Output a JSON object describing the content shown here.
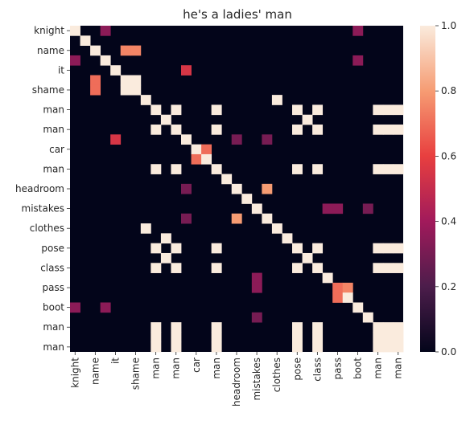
{
  "chart_data": {
    "type": "heatmap",
    "title": "he's a ladies' man",
    "xlabel": "",
    "ylabel": "",
    "labels": [
      "knight",
      "",
      "name",
      "",
      "it",
      "",
      "shame",
      "",
      "man",
      "",
      "man",
      "",
      "car",
      "",
      "man",
      "",
      "headroom",
      "",
      "mistakes",
      "",
      "clothes",
      "",
      "pose",
      "",
      "class",
      "",
      "pass",
      "",
      "boot",
      "",
      "man",
      "",
      "man"
    ],
    "n": 33,
    "colorbar": {
      "min": 0.0,
      "max": 1.0,
      "ticks": [
        "0.0",
        "0.2",
        "0.4",
        "0.6",
        "0.8",
        "1.0"
      ]
    },
    "cells": [
      [
        0,
        0,
        1.0
      ],
      [
        0,
        3,
        0.35
      ],
      [
        0,
        28,
        0.35
      ],
      [
        1,
        1,
        1.0
      ],
      [
        2,
        2,
        1.0
      ],
      [
        2,
        5,
        0.75
      ],
      [
        2,
        6,
        0.75
      ],
      [
        3,
        0,
        0.35
      ],
      [
        3,
        3,
        1.0
      ],
      [
        3,
        28,
        0.35
      ],
      [
        4,
        4,
        1.0
      ],
      [
        4,
        11,
        0.55
      ],
      [
        5,
        2,
        0.7
      ],
      [
        5,
        5,
        1.0
      ],
      [
        5,
        6,
        1.0
      ],
      [
        6,
        2,
        0.7
      ],
      [
        6,
        5,
        1.0
      ],
      [
        6,
        6,
        1.0
      ],
      [
        7,
        7,
        1.0
      ],
      [
        7,
        20,
        1.0
      ],
      [
        8,
        8,
        1.0
      ],
      [
        8,
        10,
        1.0
      ],
      [
        8,
        14,
        1.0
      ],
      [
        8,
        22,
        1.0
      ],
      [
        8,
        24,
        1.0
      ],
      [
        8,
        30,
        1.0
      ],
      [
        8,
        31,
        1.0
      ],
      [
        8,
        32,
        1.0
      ],
      [
        9,
        9,
        1.0
      ],
      [
        9,
        23,
        1.0
      ],
      [
        10,
        8,
        1.0
      ],
      [
        10,
        10,
        1.0
      ],
      [
        10,
        14,
        1.0
      ],
      [
        10,
        22,
        1.0
      ],
      [
        10,
        24,
        1.0
      ],
      [
        10,
        30,
        1.0
      ],
      [
        10,
        31,
        1.0
      ],
      [
        10,
        32,
        1.0
      ],
      [
        11,
        4,
        0.55
      ],
      [
        11,
        11,
        1.0
      ],
      [
        11,
        16,
        0.3
      ],
      [
        11,
        19,
        0.3
      ],
      [
        12,
        12,
        1.0
      ],
      [
        12,
        13,
        0.7
      ],
      [
        13,
        12,
        0.7
      ],
      [
        13,
        13,
        1.0
      ],
      [
        14,
        8,
        1.0
      ],
      [
        14,
        10,
        1.0
      ],
      [
        14,
        14,
        1.0
      ],
      [
        14,
        22,
        1.0
      ],
      [
        14,
        24,
        1.0
      ],
      [
        14,
        30,
        1.0
      ],
      [
        14,
        31,
        1.0
      ],
      [
        14,
        32,
        1.0
      ],
      [
        15,
        15,
        1.0
      ],
      [
        16,
        11,
        0.3
      ],
      [
        16,
        16,
        1.0
      ],
      [
        16,
        19,
        0.8
      ],
      [
        17,
        17,
        1.0
      ],
      [
        18,
        18,
        1.0
      ],
      [
        18,
        25,
        0.35
      ],
      [
        18,
        26,
        0.35
      ],
      [
        18,
        29,
        0.3
      ],
      [
        19,
        11,
        0.3
      ],
      [
        19,
        16,
        0.8
      ],
      [
        19,
        19,
        1.0
      ],
      [
        20,
        7,
        1.0
      ],
      [
        20,
        20,
        1.0
      ],
      [
        21,
        9,
        1.0
      ],
      [
        21,
        21,
        1.0
      ],
      [
        22,
        8,
        1.0
      ],
      [
        22,
        10,
        1.0
      ],
      [
        22,
        14,
        1.0
      ],
      [
        22,
        22,
        1.0
      ],
      [
        22,
        24,
        1.0
      ],
      [
        22,
        30,
        1.0
      ],
      [
        22,
        31,
        1.0
      ],
      [
        22,
        32,
        1.0
      ],
      [
        23,
        9,
        1.0
      ],
      [
        23,
        23,
        1.0
      ],
      [
        24,
        8,
        1.0
      ],
      [
        24,
        10,
        1.0
      ],
      [
        24,
        14,
        1.0
      ],
      [
        24,
        22,
        1.0
      ],
      [
        24,
        24,
        1.0
      ],
      [
        24,
        30,
        1.0
      ],
      [
        24,
        31,
        1.0
      ],
      [
        24,
        32,
        1.0
      ],
      [
        25,
        18,
        0.35
      ],
      [
        25,
        25,
        1.0
      ],
      [
        26,
        18,
        0.35
      ],
      [
        26,
        26,
        0.7
      ],
      [
        26,
        27,
        0.75
      ],
      [
        27,
        26,
        0.7
      ],
      [
        27,
        27,
        1.0
      ],
      [
        28,
        0,
        0.35
      ],
      [
        28,
        3,
        0.35
      ],
      [
        28,
        28,
        1.0
      ],
      [
        29,
        18,
        0.3
      ],
      [
        29,
        29,
        1.0
      ],
      [
        30,
        8,
        1.0
      ],
      [
        30,
        10,
        1.0
      ],
      [
        30,
        14,
        1.0
      ],
      [
        30,
        22,
        1.0
      ],
      [
        30,
        24,
        1.0
      ],
      [
        30,
        30,
        1.0
      ],
      [
        30,
        31,
        1.0
      ],
      [
        30,
        32,
        1.0
      ],
      [
        31,
        8,
        1.0
      ],
      [
        31,
        10,
        1.0
      ],
      [
        31,
        14,
        1.0
      ],
      [
        31,
        22,
        1.0
      ],
      [
        31,
        24,
        1.0
      ],
      [
        31,
        30,
        1.0
      ],
      [
        31,
        31,
        1.0
      ],
      [
        31,
        32,
        1.0
      ],
      [
        32,
        8,
        1.0
      ],
      [
        32,
        10,
        1.0
      ],
      [
        32,
        14,
        1.0
      ],
      [
        32,
        22,
        1.0
      ],
      [
        32,
        24,
        1.0
      ],
      [
        32,
        30,
        1.0
      ],
      [
        32,
        31,
        1.0
      ],
      [
        32,
        32,
        1.0
      ]
    ]
  }
}
